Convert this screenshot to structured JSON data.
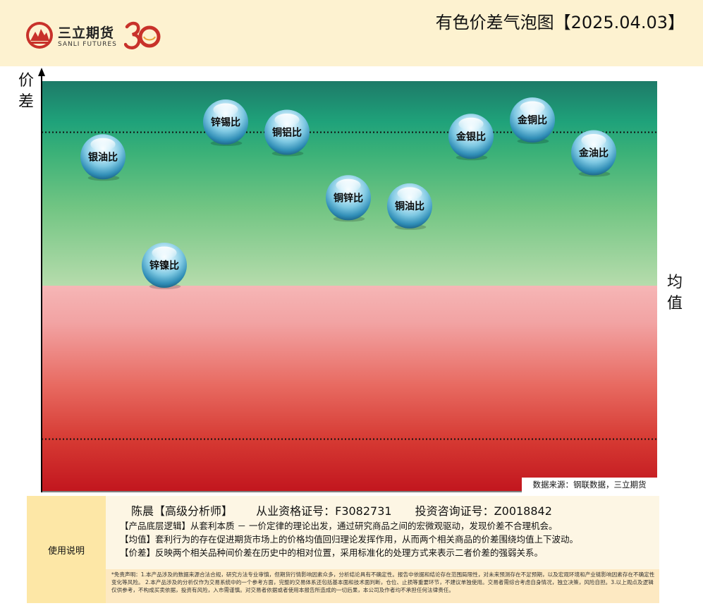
{
  "header": {
    "brand_cn": "三立期货",
    "brand_en": "SANLI FUTURES",
    "title": "有色价差气泡图【2025.04.03】",
    "brand_color": "#c8322a"
  },
  "axes": {
    "ylabel": "价差",
    "xlabel": "均值"
  },
  "chart_data": {
    "type": "scatter",
    "title": "有色价差气泡图【2025.04.03】",
    "ylabel": "价差",
    "xlabel": "均值",
    "xlim": [
      0,
      10
    ],
    "ylim": [
      -1,
      1
    ],
    "mean_line": 0,
    "upper_reference": 0.75,
    "lower_reference": -0.75,
    "grid": false,
    "zone_colors": {
      "above_mean": "#1fa27a",
      "below_mean": "#d63a33"
    },
    "points": [
      {
        "label": "银油比",
        "x": 1.0,
        "y": 0.63
      },
      {
        "label": "锌镍比",
        "x": 2.0,
        "y": 0.1
      },
      {
        "label": "锌锡比",
        "x": 3.0,
        "y": 0.8
      },
      {
        "label": "铜铝比",
        "x": 4.0,
        "y": 0.75
      },
      {
        "label": "铜锌比",
        "x": 5.0,
        "y": 0.43
      },
      {
        "label": "铜油比",
        "x": 6.0,
        "y": 0.39
      },
      {
        "label": "金银比",
        "x": 7.0,
        "y": 0.73
      },
      {
        "label": "金铜比",
        "x": 8.0,
        "y": 0.81
      },
      {
        "label": "金油比",
        "x": 9.0,
        "y": 0.65
      }
    ]
  },
  "source": "数据来源：钢联数据，三立期货",
  "panel": {
    "label": "使用说明",
    "analyst_name": "陈晨【高级分析师】",
    "qualification": "从业资格证号：F3082731",
    "consulting": "投资咨询证号：Z0018842",
    "notes": [
      "【产品底层逻辑】从套利本质 － 一价定律的理论出发，通过研究商品之间的宏微观驱动，发现价差不合理机会。",
      "【均值】套利行为的存在促进期货市场上的价格均值回归理论发挥作用，从而两个相关商品的价差围绕均值上下波动。",
      "【价差】反映两个相关品种间价差在历史中的相对位置，采用标准化的处理方式来表示二者价差的强弱关系。"
    ],
    "disclaimer": "*免责声明：1.本产品涉及的数据来源合法合规，研究方法专业审慎，但期货行情影响因素众多，分析结论具有不确定性。报告中依据和结论存在范围局限性，对未来预测存在不足预期，以及宏观环境和产业链影响因素存在不确定性变化等风险。 2.本产品涉及的分析仅作为交易系统中的一个参考方面，完整的交易体系还包括基本面和技术面判断，仓位、止损等重要环节，不建议单独使用。交易者需综合考虑自身情况，独立决策，风险自担。3.以上观点及逻辑仅供参考，不构成买卖依据，投资有风险，入市需谨慎。对交易者依据或者使用本报告所造成的一切后果，本公司及作者均不承担任何法律责任。"
  }
}
